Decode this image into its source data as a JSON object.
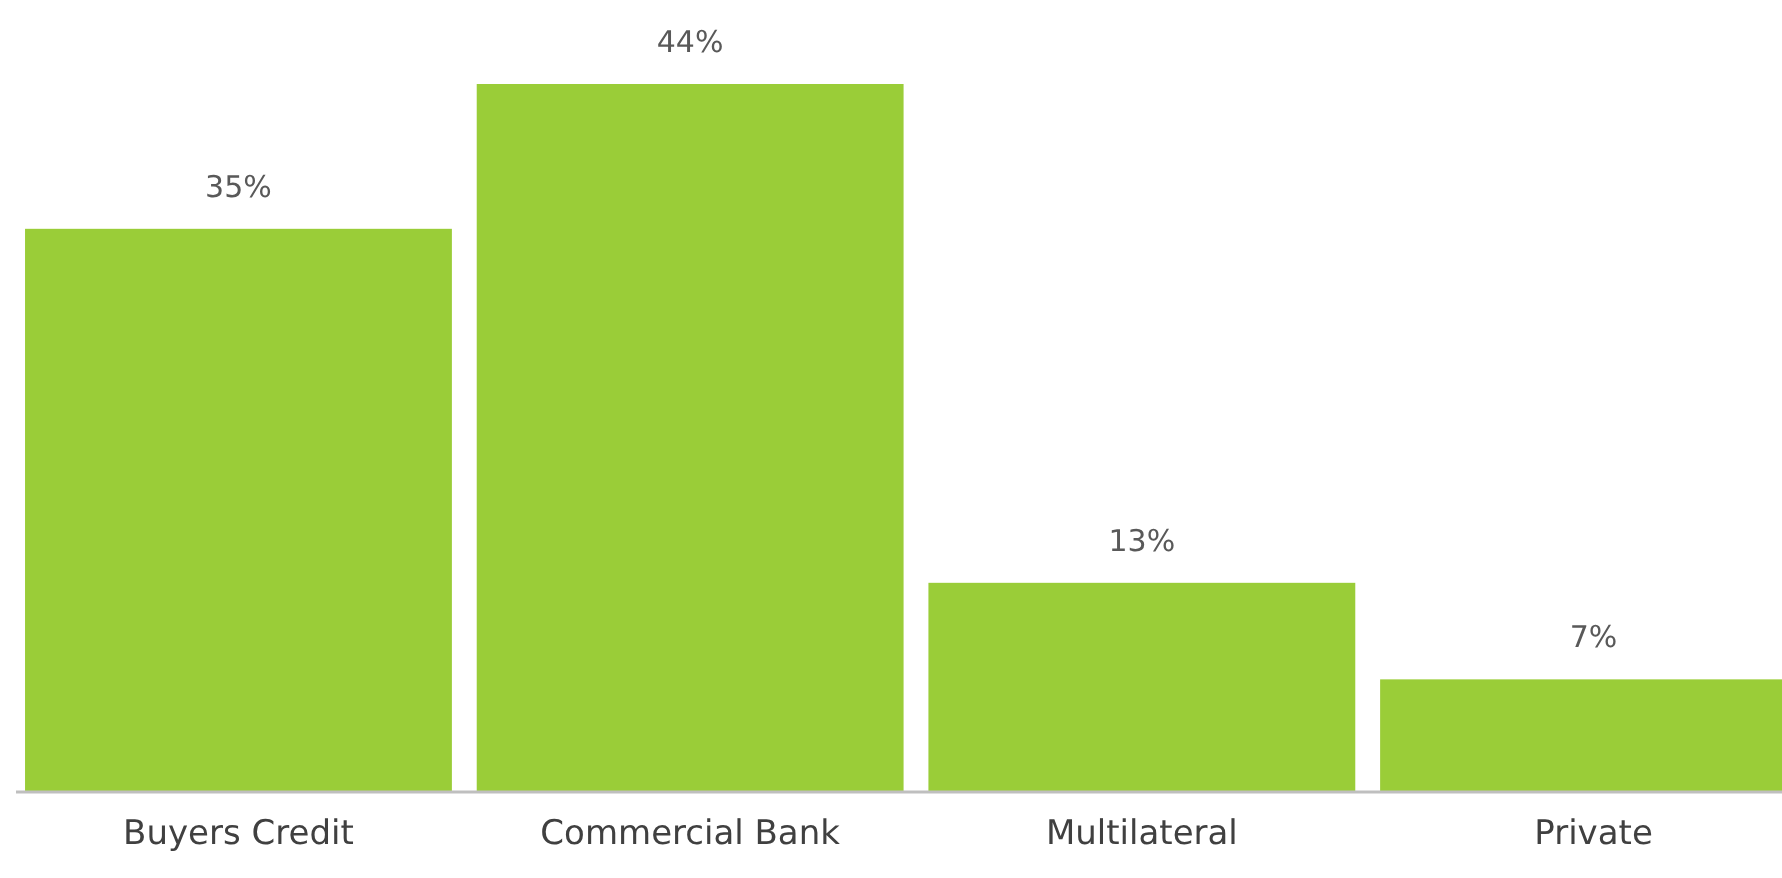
{
  "chart_data": {
    "type": "bar",
    "categories": [
      "Buyers Credit",
      "Commercial Bank",
      "Multilateral",
      "Private"
    ],
    "values": [
      35,
      44,
      13,
      7
    ],
    "color": "#9acd38",
    "value_labels": [
      "35%",
      "44%",
      "13%",
      "7%"
    ],
    "grid": false
  }
}
